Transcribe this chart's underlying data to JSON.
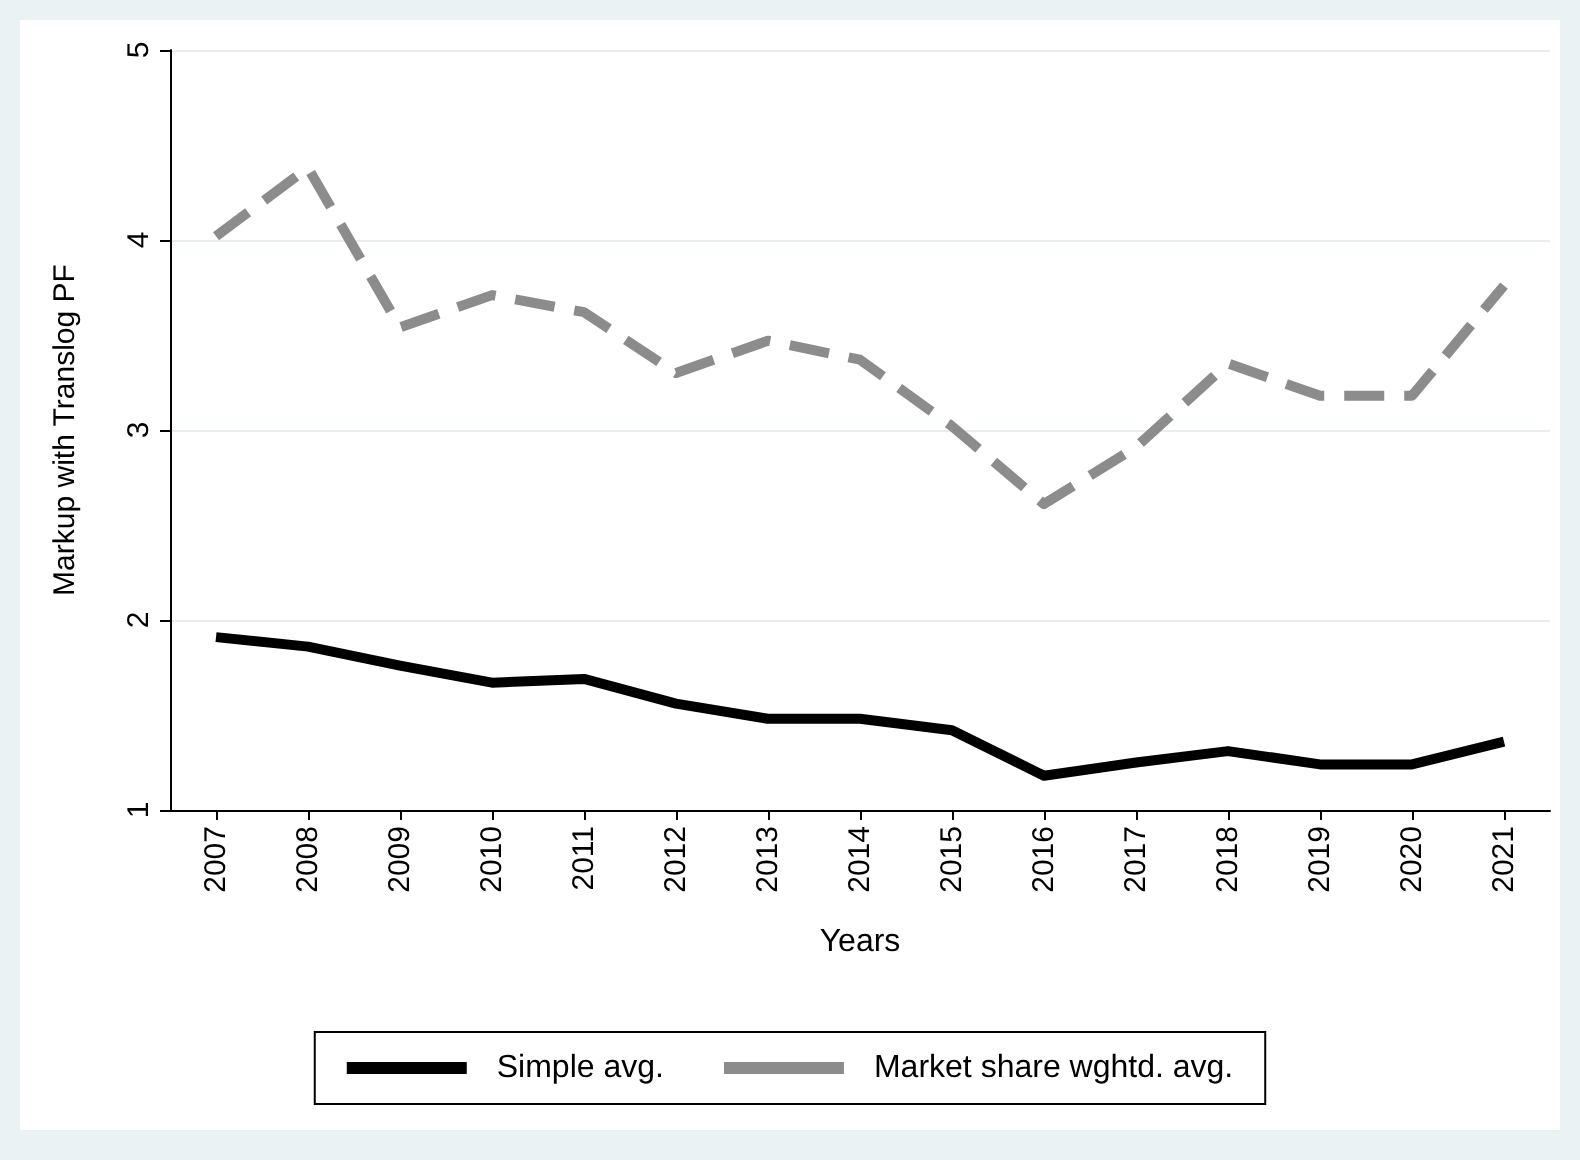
{
  "chart_data": {
    "type": "line",
    "xlabel": "Years",
    "ylabel": "Markup with Translog PF",
    "categories": [
      "2007",
      "2008",
      "2009",
      "2010",
      "2011",
      "2012",
      "2013",
      "2014",
      "2015",
      "2016",
      "2017",
      "2018",
      "2019",
      "2020",
      "2021"
    ],
    "series": [
      {
        "name": "Simple avg.",
        "color": "#000000",
        "line_style": "solid",
        "values": [
          1.91,
          1.86,
          1.76,
          1.67,
          1.69,
          1.56,
          1.48,
          1.48,
          1.42,
          1.18,
          1.25,
          1.31,
          1.24,
          1.24,
          1.36
        ]
      },
      {
        "name": "Market share wghtd. avg.",
        "color": "#8c8c8c",
        "line_style": "dashed",
        "values": [
          4.02,
          4.38,
          3.54,
          3.71,
          3.62,
          3.3,
          3.47,
          3.37,
          3.02,
          2.61,
          2.91,
          3.35,
          3.18,
          3.18,
          3.76
        ]
      }
    ],
    "ylim": [
      1,
      5
    ],
    "yticks": [
      1,
      2,
      3,
      4,
      5
    ],
    "grid": "y",
    "legend": "bottom",
    "marker": "none"
  }
}
